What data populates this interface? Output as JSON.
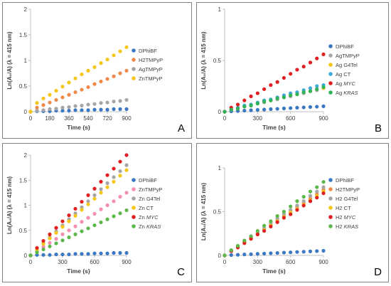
{
  "chart_data": [
    {
      "panel_label": "A",
      "type": "scatter",
      "xlabel": "Time (s)",
      "ylabel": "Ln(A₀/A) (λ = 415 nm)",
      "xlim": [
        0,
        900
      ],
      "ylim": [
        0,
        2
      ],
      "xticks": [
        0,
        180,
        360,
        540,
        720,
        900
      ],
      "yticks": [
        0,
        0.5,
        1,
        1.5,
        2
      ],
      "ytick_labels": [
        "0",
        "0.5",
        "1",
        "1.5",
        "2"
      ],
      "legend_position": "right",
      "colors": {
        "DPhiBF": "#3a78c3",
        "H2TMPyP": "#f08a4b",
        "AgTMPyP": "#a6a6a6",
        "ZnTMPyP": "#f5c518"
      },
      "series": [
        {
          "name": "DPhiBF",
          "color": "#3a78c3",
          "x": [
            0,
            60,
            120,
            180,
            240,
            300,
            360,
            420,
            480,
            540,
            600,
            660,
            720,
            780,
            840,
            900
          ],
          "y": [
            0,
            0.01,
            0.01,
            0.01,
            0.02,
            0.02,
            0.02,
            0.03,
            0.03,
            0.03,
            0.04,
            0.04,
            0.04,
            0.05,
            0.05,
            0.05
          ]
        },
        {
          "name": "H2TMPyP",
          "color": "#f08a4b",
          "x": [
            0,
            60,
            120,
            180,
            240,
            300,
            360,
            420,
            480,
            540,
            600,
            660,
            720,
            780,
            840,
            900
          ],
          "y": [
            0,
            0.08,
            0.13,
            0.18,
            0.23,
            0.28,
            0.33,
            0.38,
            0.43,
            0.48,
            0.54,
            0.59,
            0.64,
            0.69,
            0.75,
            0.8
          ]
        },
        {
          "name": "AgTMPyP",
          "color": "#a6a6a6",
          "x": [
            0,
            60,
            120,
            180,
            240,
            300,
            360,
            420,
            480,
            540,
            600,
            660,
            720,
            780,
            840,
            900
          ],
          "y": [
            0,
            0.02,
            0.03,
            0.05,
            0.06,
            0.08,
            0.09,
            0.11,
            0.12,
            0.14,
            0.15,
            0.17,
            0.18,
            0.2,
            0.21,
            0.23
          ]
        },
        {
          "name": "ZnTMPyP",
          "color": "#f5c518",
          "x": [
            0,
            60,
            120,
            180,
            240,
            300,
            360,
            420,
            480,
            540,
            600,
            660,
            720,
            780,
            840,
            900
          ],
          "y": [
            0,
            0.17,
            0.26,
            0.33,
            0.41,
            0.49,
            0.57,
            0.65,
            0.73,
            0.8,
            0.87,
            0.95,
            1.02,
            1.1,
            1.18,
            1.26
          ]
        }
      ]
    },
    {
      "panel_label": "B",
      "type": "scatter",
      "xlabel": "Time (s)",
      "ylabel": "Ln(A₀/A) (λ = 415 nm)",
      "xlim": [
        0,
        900
      ],
      "ylim": [
        0,
        1
      ],
      "xticks": [
        0,
        300,
        600,
        900
      ],
      "yticks": [
        0,
        0.5,
        1
      ],
      "ytick_labels": [
        "0",
        "0.5",
        "1"
      ],
      "legend_position": "right",
      "colors": {
        "DPhiBF": "#3a78c3",
        "AgTMPyP": "#a6a6a6",
        "Ag G4Tel": "#f5c518",
        "Ag CT": "#3fa9d9",
        "Ag MYC": "#e02020",
        "Ag KRAS": "#2fb356"
      },
      "series": [
        {
          "name": "DPhiBF",
          "color": "#3a78c3",
          "x": [
            0,
            60,
            120,
            180,
            240,
            300,
            360,
            420,
            480,
            540,
            600,
            660,
            720,
            780,
            840,
            900
          ],
          "y": [
            0,
            0.004,
            0.007,
            0.011,
            0.014,
            0.018,
            0.021,
            0.025,
            0.028,
            0.032,
            0.035,
            0.039,
            0.042,
            0.046,
            0.049,
            0.053
          ]
        },
        {
          "name": "AgTMPyP",
          "color": "#a6a6a6",
          "x": [
            0,
            60,
            120,
            180,
            240,
            300,
            360,
            420,
            480,
            540,
            600,
            660,
            720,
            780,
            840,
            900
          ],
          "y": [
            0,
            0.02,
            0.03,
            0.05,
            0.06,
            0.08,
            0.09,
            0.11,
            0.12,
            0.14,
            0.15,
            0.17,
            0.18,
            0.2,
            0.21,
            0.23
          ]
        },
        {
          "name": "Ag G4Tel",
          "color": "#f5c518",
          "x": [
            0,
            60,
            120,
            180,
            240,
            300,
            360,
            420,
            480,
            540,
            600,
            660,
            720,
            780,
            840,
            900
          ],
          "y": [
            0,
            0.02,
            0.04,
            0.05,
            0.07,
            0.08,
            0.1,
            0.11,
            0.13,
            0.14,
            0.16,
            0.17,
            0.19,
            0.2,
            0.22,
            0.23
          ]
        },
        {
          "name": "Ag CT",
          "color": "#3fa9d9",
          "x": [
            0,
            60,
            120,
            180,
            240,
            300,
            360,
            420,
            480,
            540,
            600,
            660,
            720,
            780,
            840,
            900
          ],
          "y": [
            0,
            0.02,
            0.04,
            0.06,
            0.07,
            0.09,
            0.11,
            0.12,
            0.14,
            0.16,
            0.18,
            0.19,
            0.21,
            0.23,
            0.25,
            0.26
          ]
        },
        {
          "name": "Ag MYC",
          "color": "#e02020",
          "x": [
            0,
            60,
            120,
            180,
            240,
            300,
            360,
            420,
            480,
            540,
            600,
            660,
            720,
            780,
            840,
            900
          ],
          "y": [
            0,
            0.04,
            0.07,
            0.11,
            0.15,
            0.18,
            0.22,
            0.26,
            0.29,
            0.33,
            0.37,
            0.41,
            0.44,
            0.48,
            0.52,
            0.56
          ]
        },
        {
          "name": "Ag KRAS",
          "color": "#2fb356",
          "x": [
            0,
            60,
            120,
            180,
            240,
            300,
            360,
            420,
            480,
            540,
            600,
            660,
            720,
            780,
            840,
            900
          ],
          "y": [
            0,
            0.02,
            0.03,
            0.05,
            0.06,
            0.08,
            0.1,
            0.11,
            0.13,
            0.14,
            0.16,
            0.17,
            0.19,
            0.2,
            0.22,
            0.24
          ]
        }
      ]
    },
    {
      "panel_label": "C",
      "type": "scatter",
      "xlabel": "Time (s)",
      "ylabel": "Ln(A₀/A) (λ = 415 nm)",
      "xlim": [
        0,
        900
      ],
      "ylim": [
        0,
        2
      ],
      "xticks": [
        0,
        300,
        600,
        900
      ],
      "yticks": [
        0,
        0.5,
        1,
        1.5,
        2
      ],
      "ytick_labels": [
        "0",
        "0.5",
        "1",
        "1.5",
        "2"
      ],
      "legend_position": "right",
      "colors": {
        "DPhiBF": "#3a78c3",
        "ZnTMPyP": "#f48fb1",
        "Zn G4Tel": "#a6a6a6",
        "Zn CT": "#f5c518",
        "Zn MYC": "#e02020",
        "Zn KRAS": "#5cb84a"
      },
      "series": [
        {
          "name": "DPhiBF",
          "color": "#3a78c3",
          "x": [
            0,
            60,
            120,
            180,
            240,
            300,
            360,
            420,
            480,
            540,
            600,
            660,
            720,
            780,
            840,
            900
          ],
          "y": [
            0,
            0.01,
            0.01,
            0.01,
            0.02,
            0.02,
            0.02,
            0.03,
            0.03,
            0.03,
            0.04,
            0.04,
            0.04,
            0.05,
            0.05,
            0.05
          ]
        },
        {
          "name": "ZnTMPyP",
          "color": "#f48fb1",
          "x": [
            0,
            60,
            120,
            180,
            240,
            300,
            360,
            420,
            480,
            540,
            600,
            660,
            720,
            780,
            840,
            900
          ],
          "y": [
            0,
            0.08,
            0.17,
            0.25,
            0.33,
            0.42,
            0.5,
            0.58,
            0.67,
            0.75,
            0.83,
            0.92,
            1.0,
            1.08,
            1.17,
            1.25
          ]
        },
        {
          "name": "Zn G4Tel",
          "color": "#a6a6a6",
          "x": [
            0,
            60,
            120,
            180,
            240,
            300,
            360,
            420,
            480,
            540,
            600,
            660,
            720,
            780,
            840,
            900
          ],
          "y": [
            0,
            0.12,
            0.24,
            0.36,
            0.48,
            0.6,
            0.72,
            0.84,
            0.96,
            1.08,
            1.2,
            1.32,
            1.44,
            1.56,
            1.68,
            1.8
          ]
        },
        {
          "name": "Zn CT",
          "color": "#f5c518",
          "x": [
            0,
            60,
            120,
            180,
            240,
            300,
            360,
            420,
            480,
            540,
            600,
            660,
            720,
            780,
            840,
            900
          ],
          "y": [
            0,
            0.11,
            0.23,
            0.34,
            0.45,
            0.57,
            0.68,
            0.79,
            0.91,
            1.02,
            1.13,
            1.25,
            1.36,
            1.47,
            1.59,
            1.7
          ]
        },
        {
          "name": "Zn MYC",
          "color": "#e02020",
          "x": [
            0,
            60,
            120,
            180,
            240,
            300,
            360,
            420,
            480,
            540,
            600,
            660,
            720,
            780,
            840,
            900
          ],
          "y": [
            0,
            0.15,
            0.29,
            0.42,
            0.55,
            0.68,
            0.8,
            0.93,
            1.07,
            1.2,
            1.33,
            1.47,
            1.6,
            1.73,
            1.87,
            2.0
          ]
        },
        {
          "name": "Zn KRAS",
          "color": "#5cb84a",
          "x": [
            0,
            60,
            120,
            180,
            240,
            300,
            360,
            420,
            480,
            540,
            600,
            660,
            720,
            780,
            840,
            900
          ],
          "y": [
            0,
            0.06,
            0.12,
            0.18,
            0.24,
            0.3,
            0.36,
            0.42,
            0.48,
            0.54,
            0.6,
            0.66,
            0.72,
            0.78,
            0.84,
            0.9
          ]
        }
      ]
    },
    {
      "panel_label": "D",
      "type": "scatter",
      "xlabel": "Time (s)",
      "ylabel": "Ln(A₀/A) (λ = 415 nm)",
      "xlim": [
        0,
        900
      ],
      "ylim": [
        0,
        1
      ],
      "xticks": [
        0,
        300,
        600,
        900
      ],
      "yticks": [
        0,
        0.5,
        1
      ],
      "ytick_labels": [
        "0",
        "0.5",
        "1"
      ],
      "legend_position": "right",
      "colors": {
        "DPhiBF": "#3a78c3",
        "H2TMPyP": "#f08a4b",
        "H2 G4Tel": "#a6a6a6",
        "H2 CT": "#f5c518",
        "H2 MYC": "#e02020",
        "H2 KRAS": "#5cb84a"
      },
      "series": [
        {
          "name": "DPhiBF",
          "color": "#3a78c3",
          "x": [
            0,
            60,
            120,
            180,
            240,
            300,
            360,
            420,
            480,
            540,
            600,
            660,
            720,
            780,
            840,
            900
          ],
          "y": [
            0,
            0.004,
            0.007,
            0.011,
            0.014,
            0.018,
            0.021,
            0.025,
            0.028,
            0.032,
            0.035,
            0.039,
            0.042,
            0.046,
            0.049,
            0.053
          ]
        },
        {
          "name": "H2TMPyP",
          "color": "#f08a4b",
          "x": [
            0,
            60,
            120,
            180,
            240,
            300,
            360,
            420,
            480,
            540,
            600,
            660,
            720,
            780,
            840,
            900
          ],
          "y": [
            0,
            0.05,
            0.1,
            0.15,
            0.2,
            0.25,
            0.3,
            0.35,
            0.4,
            0.45,
            0.5,
            0.55,
            0.6,
            0.65,
            0.7,
            0.75
          ]
        },
        {
          "name": "H2 G4Tel",
          "color": "#a6a6a6",
          "x": [
            0,
            60,
            120,
            180,
            240,
            300,
            360,
            420,
            480,
            540,
            600,
            660,
            720,
            780,
            840,
            900
          ],
          "y": [
            0,
            0.05,
            0.1,
            0.16,
            0.21,
            0.26,
            0.31,
            0.37,
            0.42,
            0.47,
            0.52,
            0.57,
            0.62,
            0.68,
            0.73,
            0.78
          ]
        },
        {
          "name": "H2 CT",
          "color": "#f5c518",
          "x": [
            0,
            60,
            120,
            180,
            240,
            300,
            360,
            420,
            480,
            540,
            600,
            660,
            720,
            780,
            840,
            900
          ],
          "y": [
            0,
            0.05,
            0.1,
            0.15,
            0.19,
            0.24,
            0.29,
            0.34,
            0.39,
            0.44,
            0.49,
            0.53,
            0.58,
            0.63,
            0.68,
            0.73
          ]
        },
        {
          "name": "H2 MYC",
          "color": "#e02020",
          "x": [
            0,
            60,
            120,
            180,
            240,
            300,
            360,
            420,
            480,
            540,
            600,
            660,
            720,
            780,
            840,
            900
          ],
          "y": [
            0,
            0.05,
            0.09,
            0.14,
            0.19,
            0.24,
            0.28,
            0.33,
            0.38,
            0.43,
            0.47,
            0.52,
            0.57,
            0.62,
            0.66,
            0.71
          ]
        },
        {
          "name": "H2 KRAS",
          "color": "#5cb84a",
          "x": [
            0,
            60,
            120,
            180,
            240,
            300,
            360,
            420,
            480,
            540,
            600,
            660,
            720,
            780,
            840,
            900
          ],
          "y": [
            0,
            0.06,
            0.11,
            0.17,
            0.22,
            0.28,
            0.34,
            0.39,
            0.45,
            0.5,
            0.56,
            0.62,
            0.67,
            0.73,
            0.78,
            0.84
          ]
        }
      ]
    }
  ]
}
